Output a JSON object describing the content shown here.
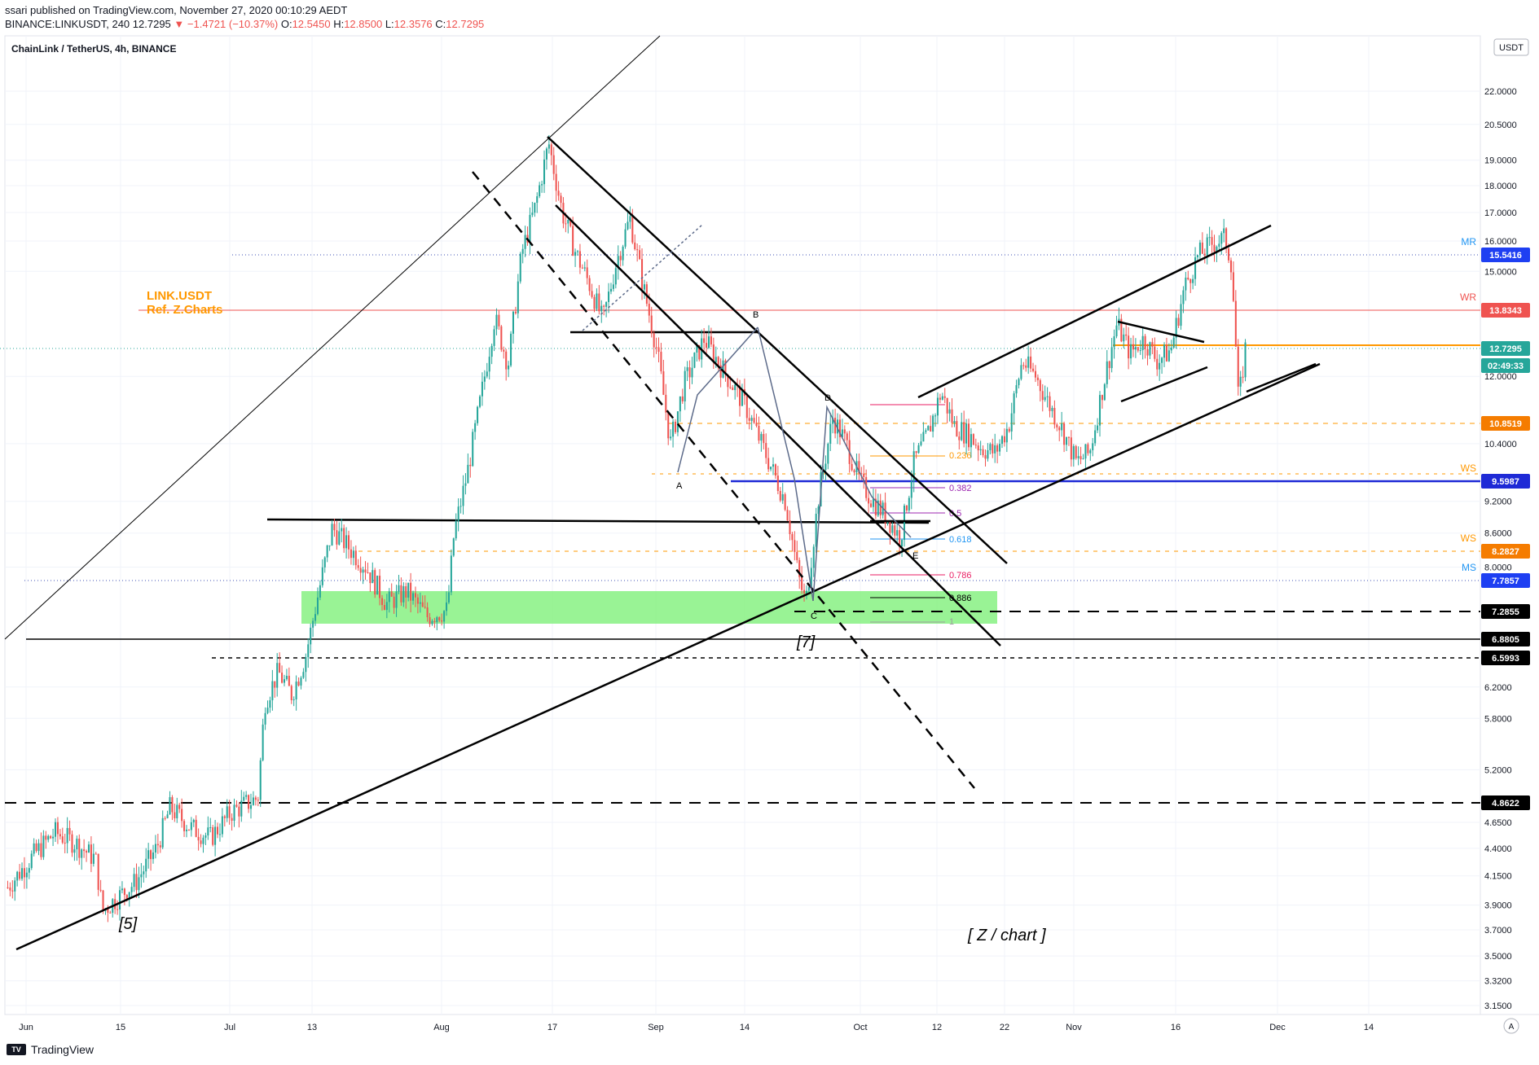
{
  "header": {
    "published": "ssari published on TradingView.com, November 27, 2020 00:10:29 AEDT",
    "symbol": "BINANCE:LINKUSDT, 240",
    "last": "12.7295",
    "change": "▼ −1.4721 (−10.37%)",
    "open_label": "O:",
    "open": "12.5450",
    "high_label": "H:",
    "high": "12.8500",
    "low_label": "L:",
    "low": "12.3576",
    "close_label": "C:",
    "close": "12.7295"
  },
  "footer": {
    "brand": "TradingView",
    "logo_text": "TV"
  },
  "chart_data": {
    "type": "candlestick",
    "title": "ChainLink / TetherUS, 4h, BINANCE",
    "currency_badge": "USDT",
    "scale": "log",
    "ylim": [
      3.05,
      25.0
    ],
    "y_ticks": [
      "22.0000",
      "20.5000",
      "19.0000",
      "18.0000",
      "17.0000",
      "16.0000",
      "15.0000",
      "12.0000",
      "10.4000",
      "9.2000",
      "8.6000",
      "8.0000",
      "6.2000",
      "5.8000",
      "5.2000",
      "4.6500",
      "4.4000",
      "4.1500",
      "3.9000",
      "3.7000",
      "3.5000",
      "3.3200",
      "3.1500"
    ],
    "x_ticks": [
      "Jun",
      "15",
      "Jul",
      "13",
      "Aug",
      "17",
      "Sep",
      "14",
      "Oct",
      "12",
      "22",
      "Nov",
      "16",
      "Dec",
      "14"
    ],
    "price_tags": [
      {
        "value": "15.5416",
        "color": "#1e3ff2",
        "label": "MR",
        "label_color": "#2196f3"
      },
      {
        "value": "13.8343",
        "color": "#ef5350",
        "label": "WR",
        "label_color": "#ef5350"
      },
      {
        "value": "12.7295",
        "color": "#26a69a"
      },
      {
        "value": "02:49:33",
        "color": "#26a69a"
      },
      {
        "value": "10.8519",
        "color": "#f57c00"
      },
      {
        "value": "9.5987",
        "color": "#1e2ad6",
        "label": "WS",
        "label_color": "#ff9800"
      },
      {
        "value": "8.2827",
        "color": "#f57c00",
        "label": "WS",
        "label_color": "#ff9800"
      },
      {
        "value": "7.7857",
        "color": "#1e3ff2",
        "label": "MS",
        "label_color": "#2196f3"
      },
      {
        "value": "7.2855",
        "color": "#000000"
      },
      {
        "value": "6.8805",
        "color": "#000000"
      },
      {
        "value": "6.5993",
        "color": "#000000"
      },
      {
        "value": "4.8622",
        "color": "#000000"
      }
    ],
    "fib_levels": [
      "0.236",
      "0.382",
      "0.5",
      "0.618",
      "0.786",
      "0.886",
      "1"
    ],
    "annotations": {
      "name": "LINK.USDT",
      "ref": "Ref. Z.Charts",
      "wave5": "[5]",
      "wave7": "[7]",
      "zchart": "[ Z / chart ]",
      "letters": [
        "A",
        "B",
        "C",
        "D",
        "E"
      ]
    },
    "price_path": [
      [
        0,
        4.05
      ],
      [
        4,
        4.35
      ],
      [
        7,
        4.55
      ],
      [
        10,
        4.45
      ],
      [
        13,
        4.3
      ],
      [
        14,
        3.85
      ],
      [
        16,
        3.95
      ],
      [
        19,
        4.1
      ],
      [
        22,
        4.4
      ],
      [
        24,
        4.8
      ],
      [
        27,
        4.6
      ],
      [
        30,
        4.5
      ],
      [
        33,
        4.75
      ],
      [
        37,
        4.9
      ],
      [
        38,
        6.0
      ],
      [
        40,
        6.4
      ],
      [
        42,
        6.1
      ],
      [
        44,
        6.6
      ],
      [
        46,
        7.6
      ],
      [
        48,
        8.7
      ],
      [
        50,
        8.4
      ],
      [
        53,
        8.0
      ],
      [
        56,
        7.4
      ],
      [
        59,
        7.6
      ],
      [
        62,
        7.2
      ],
      [
        65,
        7.3
      ],
      [
        66,
        8.6
      ],
      [
        68,
        9.8
      ],
      [
        70,
        11.5
      ],
      [
        72,
        13.6
      ],
      [
        74,
        12.3
      ],
      [
        76,
        15.6
      ],
      [
        78,
        17.2
      ],
      [
        80,
        19.7
      ],
      [
        82,
        17.0
      ],
      [
        84,
        15.6
      ],
      [
        86,
        14.6
      ],
      [
        88,
        13.5
      ],
      [
        90,
        15.3
      ],
      [
        92,
        16.8
      ],
      [
        94,
        14.5
      ],
      [
        96,
        12.7
      ],
      [
        98,
        10.4
      ],
      [
        100,
        11.8
      ],
      [
        103,
        13.0
      ],
      [
        106,
        12.1
      ],
      [
        109,
        11.3
      ],
      [
        112,
        10.2
      ],
      [
        115,
        9.2
      ],
      [
        117,
        7.8
      ],
      [
        118,
        7.4
      ],
      [
        120,
        9.4
      ],
      [
        122,
        11.0
      ],
      [
        124,
        10.4
      ],
      [
        126,
        9.6
      ],
      [
        128,
        9.2
      ],
      [
        130,
        8.9
      ],
      [
        132,
        8.5
      ],
      [
        134,
        10.0
      ],
      [
        136,
        10.6
      ],
      [
        138,
        11.6
      ],
      [
        140,
        10.8
      ],
      [
        142,
        10.6
      ],
      [
        144,
        10.3
      ],
      [
        146,
        10.2
      ],
      [
        148,
        10.8
      ],
      [
        150,
        12.4
      ],
      [
        152,
        12.0
      ],
      [
        154,
        11.3
      ],
      [
        156,
        10.7
      ],
      [
        158,
        10.0
      ],
      [
        160,
        10.2
      ],
      [
        162,
        11.8
      ],
      [
        164,
        13.4
      ],
      [
        166,
        12.6
      ],
      [
        168,
        13.0
      ],
      [
        170,
        12.4
      ],
      [
        172,
        12.7
      ],
      [
        174,
        14.5
      ],
      [
        176,
        15.5
      ],
      [
        178,
        15.9
      ],
      [
        180,
        16.1
      ],
      [
        181,
        15.2
      ],
      [
        182,
        11.3
      ],
      [
        183,
        12.73
      ]
    ]
  }
}
